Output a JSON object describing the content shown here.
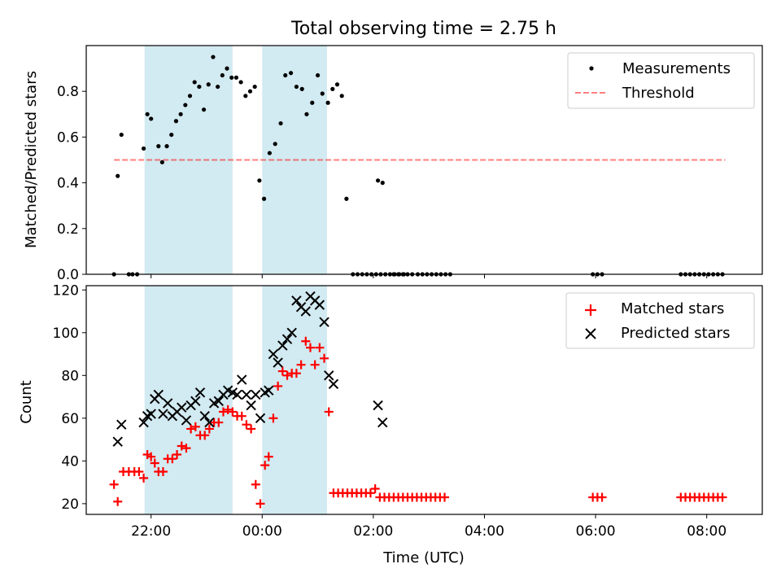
{
  "colors": {
    "band": "#add8e6",
    "measurement": "#000000",
    "threshold": "#ff0000",
    "matched": "#ff0000",
    "predicted": "#000000"
  },
  "chart_data": [
    {
      "type": "scatter",
      "title": "Total observing time = 2.75 h",
      "ylabel": "Matched/Predicted stars",
      "xlabel": "",
      "xlim": [
        "2023-01-01T20:50",
        "2023-01-02T09:00"
      ],
      "ylim": [
        0,
        1.0
      ],
      "yticks": [
        "0.0",
        "0.2",
        "0.4",
        "0.6",
        "0.8"
      ],
      "yticks_values": [
        0,
        0.2,
        0.4,
        0.6,
        0.8
      ],
      "legend": {
        "placement": "upper right",
        "entries": [
          "Measurements",
          "Threshold"
        ]
      },
      "shaded_intervals": [
        [
          "21:53",
          "23:28"
        ],
        [
          "00:00",
          "01:10"
        ]
      ],
      "threshold": {
        "name": "Threshold",
        "y": 0.5,
        "x_start": "21:20",
        "x_end": "08:20"
      },
      "series": [
        {
          "name": "Measurements",
          "marker": "dot",
          "points": [
            [
              "21:20",
              0
            ],
            [
              "21:24",
              0.43
            ],
            [
              "21:28",
              0.61
            ],
            [
              "21:36",
              0
            ],
            [
              "21:40",
              0
            ],
            [
              "21:45",
              0
            ],
            [
              "21:52",
              0.55
            ],
            [
              "21:56",
              0.7
            ],
            [
              "22:00",
              0.68
            ],
            [
              "22:08",
              0.56
            ],
            [
              "22:12",
              0.49
            ],
            [
              "22:17",
              0.56
            ],
            [
              "22:22",
              0.61
            ],
            [
              "22:27",
              0.67
            ],
            [
              "22:32",
              0.7
            ],
            [
              "22:37",
              0.74
            ],
            [
              "22:42",
              0.78
            ],
            [
              "22:47",
              0.84
            ],
            [
              "22:52",
              0.82
            ],
            [
              "22:57",
              0.72
            ],
            [
              "23:02",
              0.83
            ],
            [
              "23:07",
              0.95
            ],
            [
              "23:12",
              0.82
            ],
            [
              "23:17",
              0.87
            ],
            [
              "23:22",
              0.9
            ],
            [
              "23:27",
              0.86
            ],
            [
              "23:32",
              0.86
            ],
            [
              "23:37",
              0.84
            ],
            [
              "23:42",
              0.78
            ],
            [
              "23:47",
              0.8
            ],
            [
              "23:52",
              0.82
            ],
            [
              "23:57",
              0.41
            ],
            [
              "00:02",
              0.33
            ],
            [
              "00:08",
              0.53
            ],
            [
              "00:14",
              0.57
            ],
            [
              "00:20",
              0.66
            ],
            [
              "00:25",
              0.87
            ],
            [
              "00:31",
              0.88
            ],
            [
              "00:37",
              0.82
            ],
            [
              "00:43",
              0.81
            ],
            [
              "00:48",
              0.7
            ],
            [
              "00:54",
              0.75
            ],
            [
              "01:00",
              0.87
            ],
            [
              "01:05",
              0.79
            ],
            [
              "01:11",
              0.75
            ],
            [
              "01:16",
              0.81
            ],
            [
              "01:21",
              0.83
            ],
            [
              "01:26",
              0.78
            ],
            [
              "01:31",
              0.33
            ],
            [
              "01:38",
              0
            ],
            [
              "01:43",
              0
            ],
            [
              "01:48",
              0
            ],
            [
              "01:53",
              0
            ],
            [
              "01:58",
              0
            ],
            [
              "02:03",
              0
            ],
            [
              "02:08",
              0
            ],
            [
              "02:13",
              0
            ],
            [
              "02:18",
              0
            ],
            [
              "02:23",
              0
            ],
            [
              "02:28",
              0
            ],
            [
              "02:33",
              0
            ],
            [
              "02:05",
              0.41
            ],
            [
              "02:10",
              0.4
            ],
            [
              "02:22",
              0
            ],
            [
              "02:27",
              0
            ],
            [
              "02:32",
              0
            ],
            [
              "02:37",
              0
            ],
            [
              "02:42",
              0
            ],
            [
              "02:48",
              0
            ],
            [
              "02:53",
              0
            ],
            [
              "02:58",
              0
            ],
            [
              "03:03",
              0
            ],
            [
              "03:08",
              0
            ],
            [
              "03:13",
              0
            ],
            [
              "03:18",
              0
            ],
            [
              "03:23",
              0
            ],
            [
              "05:57",
              0
            ],
            [
              "06:02",
              0
            ],
            [
              "06:07",
              0
            ],
            [
              "07:32",
              0
            ],
            [
              "07:37",
              0
            ],
            [
              "07:42",
              0
            ],
            [
              "07:47",
              0
            ],
            [
              "07:52",
              0
            ],
            [
              "07:57",
              0
            ],
            [
              "08:02",
              0
            ],
            [
              "08:07",
              0
            ],
            [
              "08:12",
              0
            ],
            [
              "08:17",
              0
            ]
          ]
        }
      ]
    },
    {
      "type": "scatter",
      "xlabel": "Time (UTC)",
      "ylabel": "Count",
      "xticks": [
        "22:00",
        "00:00",
        "02:00",
        "04:00",
        "06:00",
        "08:00"
      ],
      "ylim": [
        15,
        122
      ],
      "yticks": [
        "20",
        "40",
        "60",
        "80",
        "100",
        "120"
      ],
      "yticks_values": [
        20,
        40,
        60,
        80,
        100,
        120
      ],
      "legend": {
        "placement": "upper right",
        "entries": [
          "Matched stars",
          "Predicted stars"
        ]
      },
      "shaded_intervals": [
        [
          "21:53",
          "23:28"
        ],
        [
          "00:00",
          "01:10"
        ]
      ],
      "series": [
        {
          "name": "Matched stars",
          "marker": "plus",
          "points": [
            [
              "21:20",
              29
            ],
            [
              "21:24",
              21
            ],
            [
              "21:30",
              35
            ],
            [
              "21:36",
              35
            ],
            [
              "21:42",
              35
            ],
            [
              "21:47",
              35
            ],
            [
              "21:52",
              32
            ],
            [
              "21:56",
              43
            ],
            [
              "22:00",
              42
            ],
            [
              "22:04",
              39
            ],
            [
              "22:08",
              35
            ],
            [
              "22:13",
              35
            ],
            [
              "22:18",
              41
            ],
            [
              "22:23",
              41
            ],
            [
              "22:28",
              43
            ],
            [
              "22:33",
              47
            ],
            [
              "22:38",
              46
            ],
            [
              "22:43",
              55
            ],
            [
              "22:48",
              56
            ],
            [
              "22:53",
              52
            ],
            [
              "22:58",
              52
            ],
            [
              "23:03",
              55
            ],
            [
              "23:08",
              58
            ],
            [
              "23:13",
              58
            ],
            [
              "23:18",
              63
            ],
            [
              "23:23",
              64
            ],
            [
              "23:28",
              63
            ],
            [
              "23:33",
              61
            ],
            [
              "23:38",
              61
            ],
            [
              "23:43",
              57
            ],
            [
              "23:48",
              55
            ],
            [
              "23:53",
              29
            ],
            [
              "23:58",
              20
            ],
            [
              "00:03",
              38
            ],
            [
              "00:07",
              42
            ],
            [
              "00:12",
              60
            ],
            [
              "00:17",
              75
            ],
            [
              "00:22",
              82
            ],
            [
              "00:27",
              80
            ],
            [
              "00:32",
              81
            ],
            [
              "00:37",
              81
            ],
            [
              "00:42",
              85
            ],
            [
              "00:47",
              96
            ],
            [
              "00:52",
              93
            ],
            [
              "00:57",
              85
            ],
            [
              "01:02",
              93
            ],
            [
              "01:07",
              88
            ],
            [
              "01:12",
              63
            ],
            [
              "01:17",
              25
            ],
            [
              "01:22",
              25
            ],
            [
              "01:27",
              25
            ],
            [
              "01:32",
              25
            ],
            [
              "01:37",
              25
            ],
            [
              "01:42",
              25
            ],
            [
              "01:47",
              25
            ],
            [
              "01:52",
              25
            ],
            [
              "01:57",
              25
            ],
            [
              "02:02",
              27
            ],
            [
              "02:07",
              23
            ],
            [
              "02:12",
              23
            ],
            [
              "02:17",
              23
            ],
            [
              "02:22",
              23
            ],
            [
              "02:27",
              23
            ],
            [
              "02:32",
              23
            ],
            [
              "02:37",
              23
            ],
            [
              "02:42",
              23
            ],
            [
              "02:47",
              23
            ],
            [
              "02:52",
              23
            ],
            [
              "02:57",
              23
            ],
            [
              "03:02",
              23
            ],
            [
              "03:07",
              23
            ],
            [
              "03:12",
              23
            ],
            [
              "03:17",
              23
            ],
            [
              "05:57",
              23
            ],
            [
              "06:02",
              23
            ],
            [
              "06:07",
              23
            ],
            [
              "07:32",
              23
            ],
            [
              "07:37",
              23
            ],
            [
              "07:42",
              23
            ],
            [
              "07:47",
              23
            ],
            [
              "07:52",
              23
            ],
            [
              "07:57",
              23
            ],
            [
              "08:02",
              23
            ],
            [
              "08:07",
              23
            ],
            [
              "08:12",
              23
            ],
            [
              "08:17",
              23
            ]
          ]
        },
        {
          "name": "Predicted stars",
          "marker": "x",
          "points": [
            [
              "21:24",
              49
            ],
            [
              "21:28",
              57
            ],
            [
              "21:52",
              58
            ],
            [
              "21:56",
              61
            ],
            [
              "22:00",
              62
            ],
            [
              "22:04",
              69
            ],
            [
              "22:08",
              71
            ],
            [
              "22:13",
              62
            ],
            [
              "22:18",
              67
            ],
            [
              "22:23",
              61
            ],
            [
              "22:28",
              63
            ],
            [
              "22:33",
              65
            ],
            [
              "22:38",
              59
            ],
            [
              "22:43",
              66
            ],
            [
              "22:48",
              68
            ],
            [
              "22:53",
              72
            ],
            [
              "22:58",
              61
            ],
            [
              "23:03",
              58
            ],
            [
              "23:08",
              67
            ],
            [
              "23:13",
              68
            ],
            [
              "23:18",
              71
            ],
            [
              "23:23",
              73
            ],
            [
              "23:28",
              72
            ],
            [
              "23:33",
              71
            ],
            [
              "23:38",
              78
            ],
            [
              "23:43",
              71
            ],
            [
              "23:48",
              66
            ],
            [
              "23:53",
              71
            ],
            [
              "23:58",
              60
            ],
            [
              "00:03",
              72
            ],
            [
              "00:07",
              73
            ],
            [
              "00:12",
              90
            ],
            [
              "00:17",
              86
            ],
            [
              "00:22",
              94
            ],
            [
              "00:27",
              97
            ],
            [
              "00:32",
              100
            ],
            [
              "00:37",
              115
            ],
            [
              "00:42",
              112
            ],
            [
              "00:47",
              110
            ],
            [
              "00:52",
              117
            ],
            [
              "00:57",
              115
            ],
            [
              "01:02",
              113
            ],
            [
              "01:07",
              105
            ],
            [
              "01:12",
              80
            ],
            [
              "01:17",
              76
            ],
            [
              "02:05",
              66
            ],
            [
              "02:10",
              58
            ]
          ]
        }
      ]
    }
  ]
}
